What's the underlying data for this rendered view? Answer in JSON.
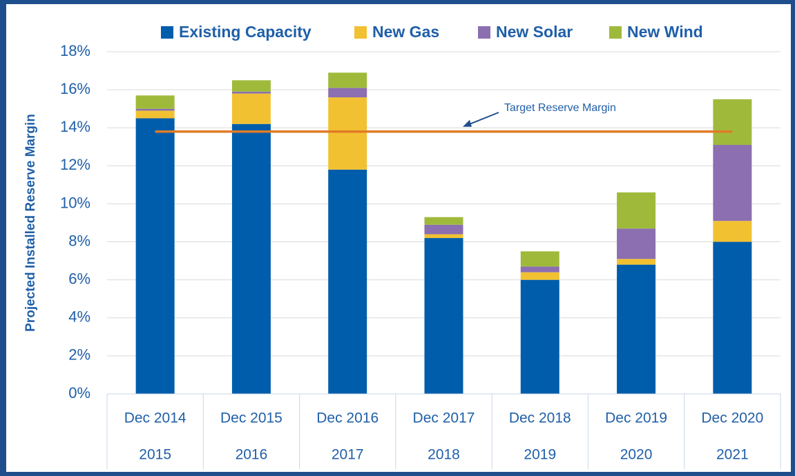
{
  "chart_data": {
    "type": "stacked_bar",
    "y_label": "Projected Installed Reserve Margin",
    "categories": [
      "Dec 2014",
      "Dec 2015",
      "Dec 2016",
      "Dec 2017",
      "Dec 2018",
      "Dec 2019",
      "Dec 2020"
    ],
    "category_groups": [
      "2015",
      "2016",
      "2017",
      "2018",
      "2019",
      "2020",
      "2021"
    ],
    "series": [
      {
        "name": "Existing Capacity",
        "color": "#005dab",
        "values": [
          14.5,
          14.2,
          11.8,
          8.2,
          6.0,
          6.8,
          8.0
        ]
      },
      {
        "name": "New Gas",
        "color": "#f2c132",
        "values": [
          0.4,
          1.6,
          3.8,
          0.2,
          0.4,
          0.3,
          1.1
        ]
      },
      {
        "name": "New Solar",
        "color": "#8b6fb0",
        "values": [
          0.1,
          0.1,
          0.5,
          0.5,
          0.3,
          1.6,
          4.0
        ]
      },
      {
        "name": "New Wind",
        "color": "#9fba3b",
        "values": [
          0.7,
          0.6,
          0.8,
          0.4,
          0.8,
          1.9,
          2.4
        ]
      }
    ],
    "target": {
      "label": "Target Reserve Margin",
      "value": 13.8,
      "color": "#e07b27"
    },
    "ylim": [
      0,
      18
    ],
    "yticks": [
      {
        "value": 0,
        "label": "0%"
      },
      {
        "value": 2,
        "label": "2%"
      },
      {
        "value": 4,
        "label": "4%"
      },
      {
        "value": 6,
        "label": "6%"
      },
      {
        "value": 8,
        "label": "8%"
      },
      {
        "value": 10,
        "label": "10%"
      },
      {
        "value": 12,
        "label": "12%"
      },
      {
        "value": 14,
        "label": "14%"
      },
      {
        "value": 16,
        "label": "16%"
      },
      {
        "value": 18,
        "label": "18%"
      }
    ],
    "grid": true,
    "legend": "top"
  }
}
